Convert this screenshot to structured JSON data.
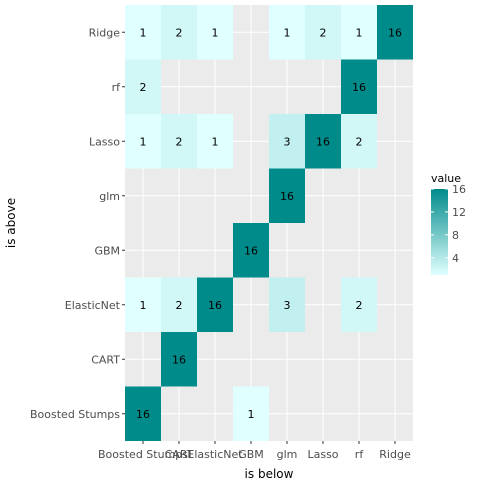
{
  "chart_data": {
    "type": "heatmap",
    "xlabel": "is below",
    "ylabel": "is above",
    "x_categories": [
      "Boosted Stumps",
      "CART",
      "ElasticNet",
      "GBM",
      "glm",
      "Lasso",
      "rf",
      "Ridge"
    ],
    "y_categories": [
      "Boosted Stumps",
      "CART",
      "ElasticNet",
      "GBM",
      "glm",
      "Lasso",
      "rf",
      "Ridge"
    ],
    "cells": [
      {
        "above": "Ridge",
        "below": "Boosted Stumps",
        "value": 1
      },
      {
        "above": "Ridge",
        "below": "CART",
        "value": 2
      },
      {
        "above": "Ridge",
        "below": "ElasticNet",
        "value": 1
      },
      {
        "above": "Ridge",
        "below": "glm",
        "value": 1
      },
      {
        "above": "Ridge",
        "below": "Lasso",
        "value": 2
      },
      {
        "above": "Ridge",
        "below": "rf",
        "value": 1
      },
      {
        "above": "Ridge",
        "below": "Ridge",
        "value": 16
      },
      {
        "above": "rf",
        "below": "Boosted Stumps",
        "value": 2
      },
      {
        "above": "rf",
        "below": "rf",
        "value": 16
      },
      {
        "above": "Lasso",
        "below": "Boosted Stumps",
        "value": 1
      },
      {
        "above": "Lasso",
        "below": "CART",
        "value": 2
      },
      {
        "above": "Lasso",
        "below": "ElasticNet",
        "value": 1
      },
      {
        "above": "Lasso",
        "below": "glm",
        "value": 3
      },
      {
        "above": "Lasso",
        "below": "Lasso",
        "value": 16
      },
      {
        "above": "Lasso",
        "below": "rf",
        "value": 2
      },
      {
        "above": "glm",
        "below": "glm",
        "value": 16
      },
      {
        "above": "GBM",
        "below": "GBM",
        "value": 16
      },
      {
        "above": "ElasticNet",
        "below": "Boosted Stumps",
        "value": 1
      },
      {
        "above": "ElasticNet",
        "below": "CART",
        "value": 2
      },
      {
        "above": "ElasticNet",
        "below": "ElasticNet",
        "value": 16
      },
      {
        "above": "ElasticNet",
        "below": "glm",
        "value": 3
      },
      {
        "above": "ElasticNet",
        "below": "rf",
        "value": 2
      },
      {
        "above": "CART",
        "below": "CART",
        "value": 16
      },
      {
        "above": "Boosted Stumps",
        "below": "Boosted Stumps",
        "value": 16
      },
      {
        "above": "Boosted Stumps",
        "below": "GBM",
        "value": 1
      }
    ],
    "legend": {
      "title": "value",
      "ticks": [
        4,
        8,
        12,
        16
      ],
      "range": [
        1,
        16
      ],
      "low_color": "#E0FFFF",
      "high_color": "#008B8B",
      "placement": "right"
    },
    "panel_background": "#EBEBEB",
    "grid": true
  }
}
